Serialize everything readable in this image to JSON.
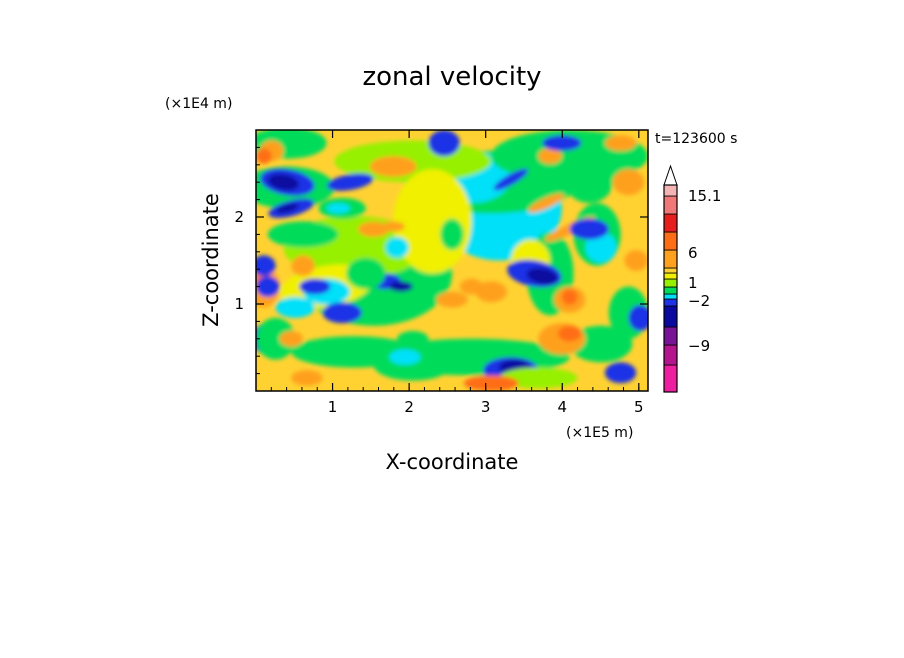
{
  "chart_data": {
    "type": "heatmap",
    "title": "zonal velocity",
    "xlabel": "X-coordinate",
    "ylabel": "Z-coordinate",
    "x_unit": "(×1E5 m)",
    "y_unit": "(×1E4 m)",
    "time_label": "t=123600 s",
    "xlim": [
      0,
      5.12
    ],
    "ylim": [
      0,
      3.0
    ],
    "x_ticks": [
      1,
      2,
      3,
      4,
      5
    ],
    "y_ticks": [
      1,
      2
    ],
    "colorbar": {
      "extend": "max",
      "labels": [
        {
          "text": "15.1",
          "value": 15.1
        },
        {
          "text": "6",
          "value": 6
        },
        {
          "text": "1",
          "value": 1
        },
        {
          "text": "−2",
          "value": -2
        },
        {
          "text": "−9",
          "value": -9
        }
      ],
      "colors": [
        "#ee1ea0",
        "#b4148c",
        "#7a1496",
        "#0a0aa0",
        "#1e32e6",
        "#00e0f8",
        "#00dc5a",
        "#96f000",
        "#f0f000",
        "#ffd232",
        "#ffa01e",
        "#ff6e14",
        "#e61e1e",
        "#f07878",
        "#f5b4b4"
      ]
    }
  }
}
